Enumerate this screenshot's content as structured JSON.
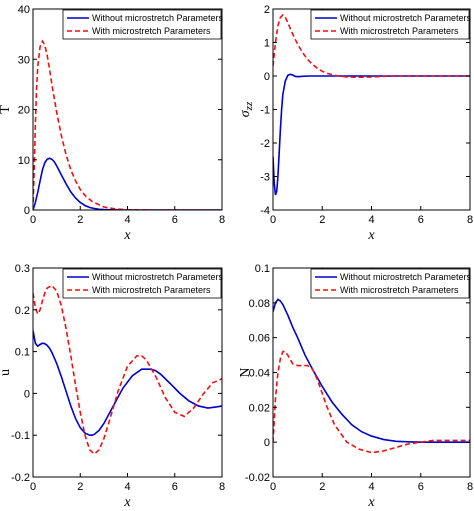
{
  "legend_labels": [
    "Without microstretch Parameters",
    "With microstretch Parameters"
  ],
  "colors": {
    "without": "#0000cc",
    "with": "#ee1111",
    "axis": "#000000",
    "background": "#ffffff"
  },
  "chart_data": [
    {
      "type": "line",
      "xlabel": "x",
      "ylabel": "T",
      "xlim": [
        0,
        8
      ],
      "ylim": [
        0,
        40
      ],
      "xticks": [
        0,
        2,
        4,
        6,
        8
      ],
      "yticks": [
        0,
        10,
        20,
        30,
        40
      ],
      "legend": "top-right",
      "grid": false,
      "series": [
        {
          "name": "Without microstretch Parameters",
          "style": "solid",
          "color": "#0000cc",
          "x": [
            0,
            0.1,
            0.2,
            0.3,
            0.4,
            0.5,
            0.6,
            0.7,
            0.8,
            0.9,
            1.0,
            1.2,
            1.4,
            1.6,
            1.8,
            2.0,
            2.2,
            2.4,
            2.6,
            2.8,
            3.0,
            3.5,
            4,
            5,
            6,
            7,
            8
          ],
          "y": [
            0,
            1.5,
            3.5,
            5.8,
            8.0,
            9.4,
            10.1,
            10.3,
            10.1,
            9.6,
            8.8,
            7.0,
            5.2,
            3.6,
            2.4,
            1.5,
            0.9,
            0.5,
            0.3,
            0.15,
            0.08,
            0.02,
            0,
            0,
            0,
            0,
            0
          ]
        },
        {
          "name": "With microstretch Parameters",
          "style": "dashed",
          "color": "#ee1111",
          "x": [
            0,
            0.05,
            0.1,
            0.15,
            0.2,
            0.3,
            0.4,
            0.5,
            0.6,
            0.7,
            0.8,
            1.0,
            1.2,
            1.4,
            1.6,
            1.8,
            2.0,
            2.2,
            2.5,
            3.0,
            3.5,
            4,
            5,
            6,
            7,
            8
          ],
          "y": [
            0,
            8,
            17,
            24,
            28.5,
            32.5,
            33.6,
            32.8,
            30.8,
            28,
            25,
            19.5,
            14.8,
            11,
            8,
            5.8,
            4.1,
            2.9,
            1.7,
            0.6,
            0.2,
            0.05,
            0,
            0,
            0,
            0
          ]
        }
      ]
    },
    {
      "type": "line",
      "xlabel": "x",
      "ylabel": "σzz",
      "xlim": [
        0,
        8
      ],
      "ylim": [
        -4,
        2
      ],
      "xticks": [
        0,
        2,
        4,
        6,
        8
      ],
      "yticks": [
        -4,
        -3,
        -2,
        -1,
        0,
        1,
        2
      ],
      "legend": "top-right",
      "grid": false,
      "series": [
        {
          "name": "Without microstretch Parameters",
          "style": "solid",
          "color": "#0000cc",
          "x": [
            0,
            0.05,
            0.1,
            0.15,
            0.2,
            0.25,
            0.3,
            0.35,
            0.4,
            0.5,
            0.6,
            0.7,
            0.8,
            0.9,
            1.0,
            1.2,
            1.5,
            2.0,
            3,
            4,
            5,
            6,
            7,
            8
          ],
          "y": [
            -2.4,
            -3.2,
            -3.55,
            -3.45,
            -3.0,
            -2.3,
            -1.6,
            -1.0,
            -0.55,
            -0.15,
            0.02,
            0.05,
            0.03,
            -0.01,
            -0.02,
            -0.01,
            0,
            0,
            0,
            0,
            0,
            0,
            0,
            0
          ]
        },
        {
          "name": "With microstretch Parameters",
          "style": "dashed",
          "color": "#ee1111",
          "x": [
            0,
            0.1,
            0.2,
            0.3,
            0.4,
            0.5,
            0.6,
            0.7,
            0.8,
            1.0,
            1.2,
            1.4,
            1.6,
            1.8,
            2.0,
            2.2,
            2.5,
            3.0,
            3.5,
            4,
            4.5,
            5,
            6,
            7,
            8
          ],
          "y": [
            0.3,
            1.0,
            1.5,
            1.75,
            1.82,
            1.75,
            1.6,
            1.42,
            1.25,
            0.95,
            0.7,
            0.5,
            0.35,
            0.23,
            0.14,
            0.08,
            0.02,
            -0.03,
            -0.04,
            -0.03,
            -0.01,
            0,
            0,
            0,
            0
          ]
        }
      ]
    },
    {
      "type": "line",
      "xlabel": "x",
      "ylabel": "u",
      "xlim": [
        0,
        8
      ],
      "ylim": [
        -0.2,
        0.3
      ],
      "xticks": [
        0,
        2,
        4,
        6,
        8
      ],
      "yticks": [
        -0.2,
        -0.1,
        0,
        0.1,
        0.2,
        0.3
      ],
      "legend": "top-right",
      "grid": false,
      "series": [
        {
          "name": "Without microstretch Parameters",
          "style": "solid",
          "color": "#0000cc",
          "x": [
            0,
            0.1,
            0.2,
            0.3,
            0.4,
            0.5,
            0.6,
            0.7,
            0.8,
            1.0,
            1.2,
            1.4,
            1.6,
            1.8,
            2.0,
            2.2,
            2.4,
            2.5,
            2.6,
            2.8,
            3.0,
            3.4,
            3.8,
            4.2,
            4.6,
            5.0,
            5.2,
            5.4,
            5.8,
            6.2,
            6.6,
            7.0,
            7.4,
            7.8,
            8.0
          ],
          "y": [
            0.15,
            0.12,
            0.113,
            0.117,
            0.12,
            0.119,
            0.115,
            0.108,
            0.098,
            0.072,
            0.04,
            0.005,
            -0.03,
            -0.06,
            -0.082,
            -0.095,
            -0.1,
            -0.1,
            -0.098,
            -0.088,
            -0.072,
            -0.03,
            0.012,
            0.042,
            0.058,
            0.058,
            0.054,
            0.046,
            0.024,
            0.001,
            -0.018,
            -0.03,
            -0.035,
            -0.032,
            -0.03
          ]
        },
        {
          "name": "With microstretch Parameters",
          "style": "dashed",
          "color": "#ee1111",
          "x": [
            0,
            0.1,
            0.2,
            0.3,
            0.4,
            0.5,
            0.6,
            0.8,
            1.0,
            1.2,
            1.4,
            1.6,
            1.8,
            2.0,
            2.2,
            2.4,
            2.6,
            2.8,
            3.0,
            3.2,
            3.6,
            4.0,
            4.4,
            4.6,
            4.8,
            5.2,
            5.6,
            6.0,
            6.4,
            6.8,
            7.2,
            7.6,
            8.0
          ],
          "y": [
            0.24,
            0.205,
            0.19,
            0.2,
            0.222,
            0.24,
            0.252,
            0.258,
            0.245,
            0.21,
            0.155,
            0.09,
            0.02,
            -0.045,
            -0.1,
            -0.135,
            -0.145,
            -0.135,
            -0.108,
            -0.072,
            0.005,
            0.065,
            0.09,
            0.09,
            0.08,
            0.04,
            -0.01,
            -0.045,
            -0.055,
            -0.035,
            -0.002,
            0.025,
            0.035
          ]
        }
      ]
    },
    {
      "type": "line",
      "xlabel": "x",
      "ylabel": "N",
      "xlim": [
        0,
        8
      ],
      "ylim": [
        -0.02,
        0.1
      ],
      "xticks": [
        0,
        2,
        4,
        6,
        8
      ],
      "yticks": [
        -0.02,
        0,
        0.02,
        0.04,
        0.06,
        0.08,
        0.1
      ],
      "legend": "top-right",
      "grid": false,
      "series": [
        {
          "name": "Without microstretch Parameters",
          "style": "solid",
          "color": "#0000cc",
          "x": [
            0,
            0.1,
            0.2,
            0.3,
            0.4,
            0.6,
            0.8,
            1.0,
            1.3,
            1.6,
            2.0,
            2.4,
            2.8,
            3.2,
            3.6,
            4.0,
            4.5,
            5.0,
            5.5,
            6.0,
            6.5,
            7.0,
            8.0
          ],
          "y": [
            0.075,
            0.08,
            0.082,
            0.081,
            0.079,
            0.073,
            0.066,
            0.06,
            0.05,
            0.042,
            0.032,
            0.023,
            0.016,
            0.01,
            0.006,
            0.0035,
            0.0015,
            0.0005,
            0.0002,
            0,
            0,
            0,
            0
          ]
        },
        {
          "name": "With microstretch Parameters",
          "style": "dashed",
          "color": "#ee1111",
          "x": [
            0,
            0.1,
            0.2,
            0.3,
            0.4,
            0.5,
            0.6,
            0.8,
            1.0,
            1.2,
            1.4,
            1.6,
            1.8,
            2.0,
            2.2,
            2.5,
            3.0,
            3.5,
            4.0,
            4.5,
            5.0,
            5.5,
            6.0,
            6.5,
            7.0,
            7.5,
            8.0
          ],
          "y": [
            0.0,
            0.025,
            0.04,
            0.048,
            0.052,
            0.052,
            0.05,
            0.045,
            0.044,
            0.044,
            0.044,
            0.042,
            0.036,
            0.028,
            0.02,
            0.01,
            0,
            -0.004,
            -0.006,
            -0.005,
            -0.003,
            -0.001,
            0,
            0.001,
            0.001,
            0.001,
            0.001
          ]
        }
      ]
    }
  ]
}
